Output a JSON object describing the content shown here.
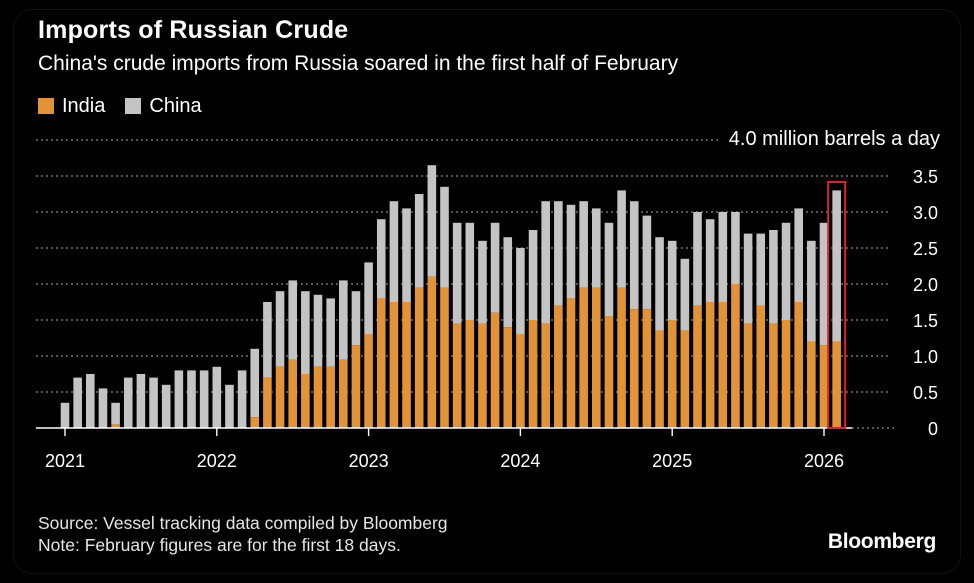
{
  "chart_data": {
    "type": "bar",
    "stacked": true,
    "title": "Imports of Russian Crude",
    "subtitle": "China's crude imports from Russia soared in the first half of February",
    "ylabel": "4.0 million barrels a day",
    "ylim": [
      0,
      4.0
    ],
    "yticks": [
      "0",
      "0.5",
      "1.0",
      "1.5",
      "2.0",
      "2.5",
      "3.0",
      "3.5"
    ],
    "xticks": [
      "2021",
      "2022",
      "2023",
      "2024",
      "2025",
      "2026"
    ],
    "start": "2021-01",
    "legend_position": "top-left",
    "highlight_last": true,
    "series": [
      {
        "name": "India",
        "color": "#e39337",
        "values": [
          0.0,
          0.0,
          0.0,
          0.0,
          0.05,
          0.0,
          0.0,
          0.0,
          0.0,
          0.0,
          0.0,
          0.0,
          0.0,
          0.0,
          0.0,
          0.15,
          0.7,
          0.85,
          0.95,
          0.75,
          0.85,
          0.85,
          0.95,
          1.15,
          1.3,
          1.8,
          1.75,
          1.75,
          1.95,
          2.1,
          1.95,
          1.45,
          1.5,
          1.45,
          1.6,
          1.4,
          1.3,
          1.5,
          1.45,
          1.7,
          1.8,
          1.95,
          1.95,
          1.55,
          1.95,
          1.65,
          1.65,
          1.35,
          1.5,
          1.35,
          1.7,
          1.75,
          1.75,
          2.0,
          1.45,
          1.7,
          1.45,
          1.5,
          1.75,
          1.2,
          1.15,
          1.2
        ]
      },
      {
        "name": "China",
        "color": "#c4c4c4",
        "values": [
          0.35,
          0.7,
          0.75,
          0.55,
          0.3,
          0.7,
          0.75,
          0.7,
          0.6,
          0.8,
          0.8,
          0.8,
          0.85,
          0.6,
          0.8,
          0.95,
          1.05,
          1.05,
          1.1,
          1.15,
          1.0,
          0.95,
          1.1,
          0.75,
          1.0,
          1.1,
          1.4,
          1.3,
          1.3,
          1.55,
          1.4,
          1.4,
          1.35,
          1.15,
          1.25,
          1.25,
          1.2,
          1.25,
          1.7,
          1.45,
          1.3,
          1.2,
          1.1,
          1.3,
          1.35,
          1.5,
          1.3,
          1.3,
          1.1,
          1.0,
          1.3,
          1.15,
          1.25,
          1.0,
          1.25,
          1.0,
          1.3,
          1.35,
          1.3,
          1.4,
          1.7,
          2.1
        ]
      }
    ]
  },
  "footer": {
    "source": "Source: Vessel tracking data compiled by Bloomberg",
    "note": "Note: February figures are for the first 18 days."
  },
  "brand": "Bloomberg",
  "colors": {
    "background": "#000000",
    "grid": "#8a8a8a",
    "text": "#ffffff",
    "highlight": "#d9242a"
  }
}
